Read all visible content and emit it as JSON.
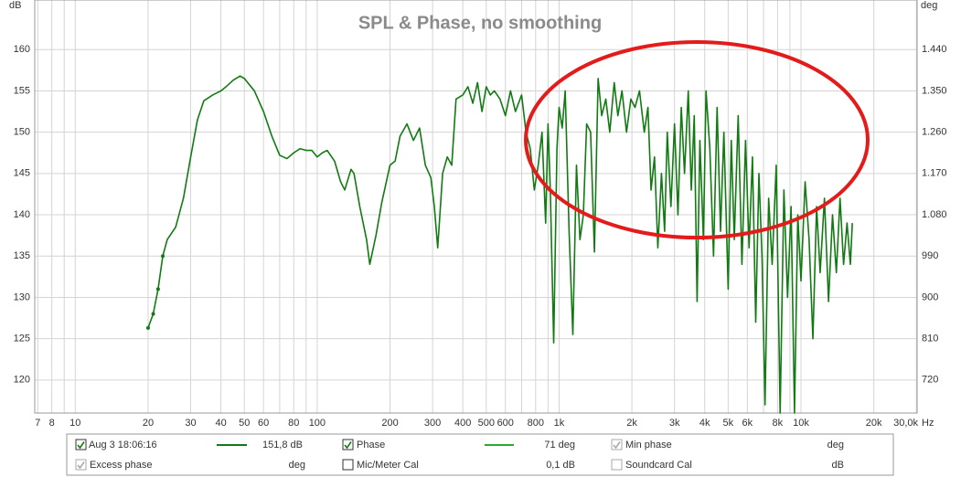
{
  "chart_data": {
    "type": "line",
    "title": "SPL & Phase, no smoothing",
    "y_label": "dB",
    "y2_label": "deg",
    "x_label": "Hz",
    "log_x": true,
    "grid": true,
    "xlim": [
      6.8,
      30200
    ],
    "ylim": [
      116,
      166
    ],
    "y2lim": [
      648,
      1548
    ],
    "xticks": [
      7,
      8,
      10,
      20,
      30,
      40,
      50,
      60,
      80,
      100,
      200,
      300,
      400,
      500,
      600,
      800,
      {
        "value": 1000,
        "label": "1k"
      },
      {
        "value": 2000,
        "label": "2k"
      },
      {
        "value": 3000,
        "label": "3k"
      },
      {
        "value": 4000,
        "label": "4k"
      },
      {
        "value": 5000,
        "label": "5k"
      },
      {
        "value": 6000,
        "label": "6k"
      },
      {
        "value": 8000,
        "label": "8k"
      },
      {
        "value": 10000,
        "label": "10k"
      },
      {
        "value": 20000,
        "label": "20k"
      },
      {
        "value": 30000,
        "label": "30,0k"
      }
    ],
    "x_minor_grid": [
      9,
      70,
      90,
      700,
      900,
      7000,
      9000
    ],
    "yticks": [
      120,
      125,
      130,
      135,
      140,
      145,
      150,
      155,
      160
    ],
    "y2ticks": [
      720,
      810,
      900,
      990,
      {
        "value": 1080,
        "label": "1.080"
      },
      {
        "value": 1170,
        "label": "1.170"
      },
      {
        "value": 1260,
        "label": "1.260"
      },
      {
        "value": 1350,
        "label": "1.350"
      },
      {
        "value": 1440,
        "label": "1.440"
      }
    ],
    "x": [
      20,
      21,
      22,
      23,
      24,
      26,
      28,
      30,
      32,
      34,
      37,
      40,
      42,
      45,
      48,
      50,
      55,
      60,
      65,
      70,
      75,
      80,
      85,
      90,
      95,
      100,
      105,
      110,
      118,
      125,
      130,
      138,
      142,
      150,
      160,
      165,
      175,
      185,
      200,
      210,
      220,
      235,
      250,
      265,
      280,
      295,
      305,
      315,
      330,
      345,
      360,
      375,
      400,
      420,
      440,
      460,
      480,
      500,
      520,
      540,
      570,
      600,
      630,
      660,
      700,
      730,
      760,
      790,
      820,
      850,
      880,
      900,
      920,
      950,
      980,
      1000,
      1030,
      1060,
      1100,
      1140,
      1180,
      1220,
      1260,
      1300,
      1350,
      1400,
      1450,
      1500,
      1560,
      1620,
      1690,
      1750,
      1820,
      1900,
      1980,
      2060,
      2150,
      2250,
      2330,
      2400,
      2480,
      2560,
      2650,
      2730,
      2800,
      2900,
      3000,
      3100,
      3200,
      3300,
      3420,
      3520,
      3620,
      3720,
      3820,
      3950,
      4050,
      4200,
      4350,
      4500,
      4650,
      4800,
      5000,
      5150,
      5300,
      5500,
      5700,
      5900,
      6100,
      6300,
      6500,
      6700,
      6900,
      7100,
      7350,
      7600,
      7900,
      8200,
      8500,
      8800,
      9100,
      9400,
      9700,
      10000,
      10400,
      10800,
      11200,
      11600,
      12000,
      12500,
      13000,
      13500,
      14000,
      14500,
      15000,
      15500,
      16000,
      16300
    ],
    "series": [
      {
        "name": "Aug 3 18:06:16",
        "color": "#127a12",
        "checked": true,
        "readout": "151,8 dB",
        "values": [
          126.3,
          128,
          131,
          135,
          137,
          138.5,
          142,
          147,
          151.5,
          153.8,
          154.5,
          155,
          155.5,
          156.3,
          156.8,
          156.5,
          155,
          152.5,
          149.5,
          147.2,
          146.8,
          147.5,
          148,
          147.8,
          147.8,
          147,
          147.5,
          147.8,
          146.5,
          144,
          143,
          145.5,
          145,
          141,
          137,
          134,
          137.5,
          141.5,
          146,
          146.5,
          149.5,
          151,
          149,
          150.5,
          146,
          144.5,
          141,
          136,
          145,
          147,
          146,
          154,
          154.5,
          155.5,
          153.5,
          156,
          152.5,
          155.5,
          154.5,
          155,
          154,
          152,
          155,
          152.5,
          154.5,
          150,
          148,
          143,
          146,
          150,
          139,
          151,
          143,
          124.5,
          148,
          153,
          150.5,
          155,
          138,
          125.5,
          146,
          137,
          140,
          151,
          150,
          135.5,
          156.5,
          152,
          154,
          150,
          156,
          152,
          155,
          150,
          154,
          153,
          155,
          150,
          153,
          143,
          147,
          136,
          145,
          138,
          150,
          141,
          151,
          140,
          153,
          145,
          155,
          143,
          152,
          129.5,
          149,
          137,
          155,
          148,
          135,
          153,
          138,
          150,
          131,
          149,
          137,
          152,
          134,
          149,
          136,
          147,
          127,
          145,
          135,
          117,
          142,
          134,
          146,
          116,
          143,
          130,
          141,
          116,
          140,
          132,
          144,
          137,
          125,
          141,
          133,
          142,
          129.5,
          140,
          133,
          142,
          134,
          139,
          134,
          139
        ]
      }
    ],
    "legend_panel": {
      "phase": {
        "label": "Phase",
        "checked": true,
        "enabled": true,
        "color": "#2ea82e",
        "readout": "71 deg"
      },
      "min_phase": {
        "label": "Min phase",
        "checked": true,
        "enabled": false,
        "readout": "deg"
      },
      "excess_phase": {
        "label": "Excess phase",
        "checked": true,
        "enabled": false,
        "readout": "deg"
      },
      "mic_meter_cal": {
        "label": "Mic/Meter Cal",
        "checked": false,
        "enabled": true,
        "readout": "0,1 dB"
      },
      "soundcard_cal": {
        "label": "Soundcard Cal",
        "checked": false,
        "enabled": false,
        "readout": "dB"
      }
    }
  }
}
